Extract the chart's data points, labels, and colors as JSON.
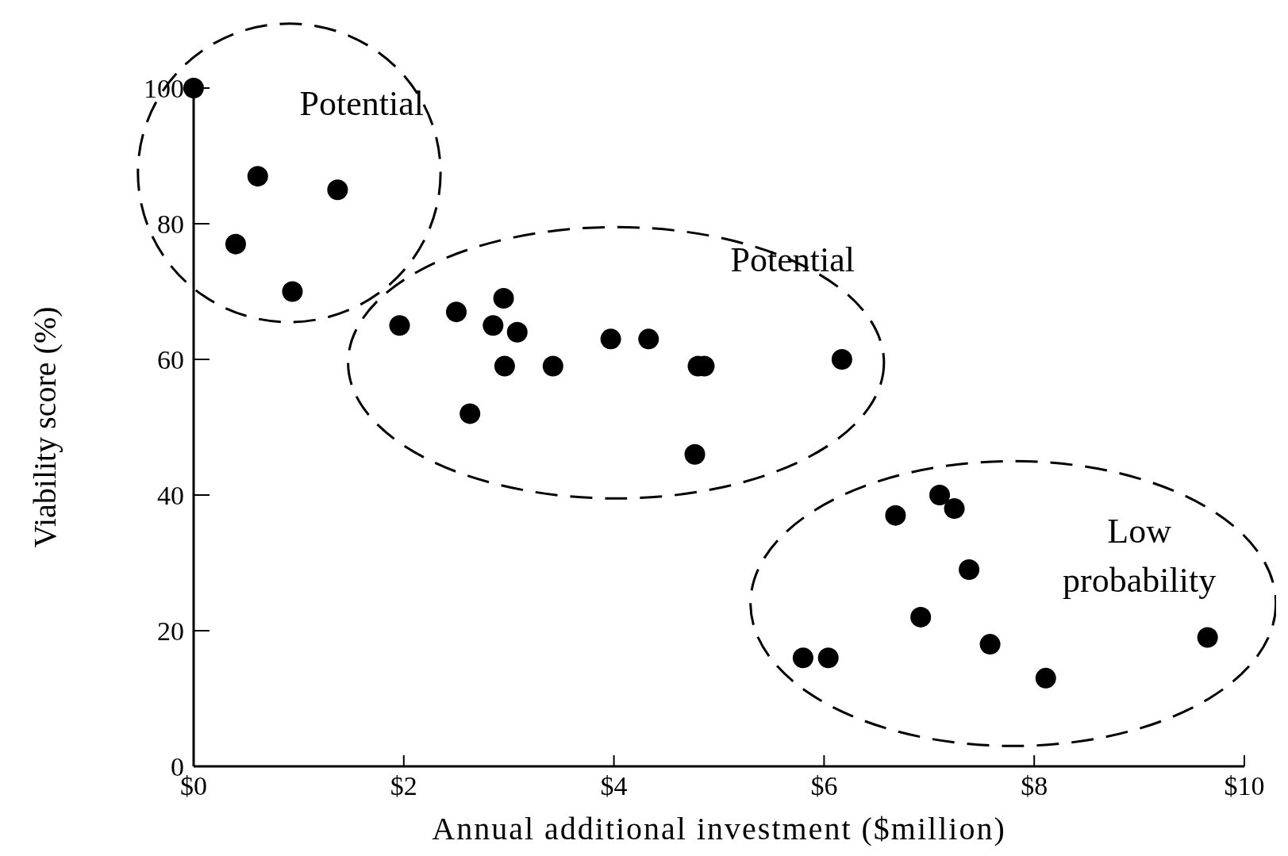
{
  "chart_data": {
    "type": "scatter",
    "xlabel": "Annual additional investment ($million)",
    "ylabel": "Viability score (%)",
    "x": [
      0,
      0.61,
      1.37,
      0.4,
      0.94,
      1.96,
      2.5,
      2.95,
      2.85,
      3.08,
      2.96,
      3.42,
      2.63,
      3.97,
      4.33,
      4.8,
      4.86,
      4.77,
      6.17,
      6.68,
      7.1,
      7.24,
      7.38,
      6.92,
      5.8,
      6.04,
      7.58,
      8.11,
      9.65
    ],
    "values": [
      100,
      87,
      85,
      77,
      70,
      65,
      67,
      69,
      65,
      64,
      59,
      59,
      52,
      63,
      63,
      59,
      59,
      46,
      60,
      37,
      40,
      38,
      29,
      22,
      16,
      16,
      18,
      13,
      19
    ],
    "color": "#000000",
    "marker": "circle",
    "xlim": [
      0,
      10
    ],
    "xticks": [
      {
        "value": 0,
        "label": "$0"
      },
      {
        "value": 2,
        "label": "$2"
      },
      {
        "value": 4,
        "label": "$4"
      },
      {
        "value": 6,
        "label": "$6"
      },
      {
        "value": 8,
        "label": "$8"
      },
      {
        "value": 10,
        "label": "$10"
      }
    ],
    "ylim": [
      0,
      100
    ],
    "yticks": [
      0,
      20,
      40,
      60,
      80,
      100
    ],
    "grid": false,
    "annotations": [
      "Potential",
      "Potential",
      "Low\nprobability"
    ]
  }
}
